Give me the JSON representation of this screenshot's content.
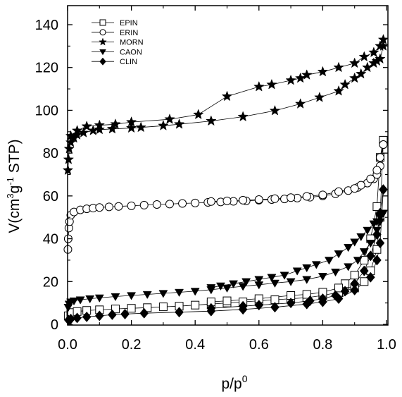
{
  "chart_data": {
    "type": "line",
    "title": "",
    "xlabel": "p/p0",
    "ylabel": "V(cm3g-1 STP)",
    "xlabel_main": "p/p",
    "xlabel_sup": "0",
    "ylabel_part1": "V(cm",
    "ylabel_sup1": "3",
    "ylabel_part2": "g",
    "ylabel_sup2": "-1",
    "ylabel_part3": " STP)",
    "xlim": [
      0.0,
      1.0
    ],
    "ylim": [
      0,
      150
    ],
    "x_ticks": [
      "0.0",
      "0.2",
      "0.4",
      "0.6",
      "0.8",
      "1.0"
    ],
    "y_ticks": [
      "0",
      "20",
      "40",
      "60",
      "80",
      "100",
      "120",
      "140"
    ],
    "grid": false,
    "legend_position": "top-left",
    "series": [
      {
        "name": "EPIN",
        "marker": "open-square",
        "color": "#000000",
        "adsorption": [
          [
            0.002,
            4
          ],
          [
            0.01,
            5.5
          ],
          [
            0.03,
            6
          ],
          [
            0.06,
            6.5
          ],
          [
            0.1,
            6.8
          ],
          [
            0.15,
            7.2
          ],
          [
            0.2,
            7.5
          ],
          [
            0.25,
            7.8
          ],
          [
            0.3,
            8.2
          ],
          [
            0.35,
            8.5
          ],
          [
            0.4,
            9
          ],
          [
            0.45,
            9.5
          ],
          [
            0.5,
            10
          ],
          [
            0.55,
            10.5
          ],
          [
            0.6,
            11
          ],
          [
            0.65,
            11.5
          ],
          [
            0.7,
            12
          ],
          [
            0.75,
            12.5
          ],
          [
            0.8,
            13.5
          ],
          [
            0.85,
            15
          ],
          [
            0.9,
            17
          ],
          [
            0.93,
            20
          ],
          [
            0.95,
            25
          ],
          [
            0.97,
            35
          ],
          [
            0.98,
            50
          ],
          [
            0.99,
            86
          ]
        ],
        "desorption": [
          [
            0.99,
            86
          ],
          [
            0.98,
            78
          ],
          [
            0.97,
            55
          ],
          [
            0.95,
            40
          ],
          [
            0.93,
            30
          ],
          [
            0.9,
            23
          ],
          [
            0.87,
            19
          ],
          [
            0.85,
            17
          ],
          [
            0.8,
            15
          ],
          [
            0.75,
            14
          ],
          [
            0.7,
            13.5
          ],
          [
            0.6,
            12
          ],
          [
            0.5,
            11
          ],
          [
            0.45,
            10.5
          ]
        ]
      },
      {
        "name": "ERIN",
        "marker": "open-circle",
        "color": "#000000",
        "adsorption": [
          [
            0.001,
            35
          ],
          [
            0.002,
            40
          ],
          [
            0.004,
            45
          ],
          [
            0.006,
            48
          ],
          [
            0.01,
            51
          ],
          [
            0.02,
            52.5
          ],
          [
            0.04,
            53.5
          ],
          [
            0.06,
            54
          ],
          [
            0.08,
            54.3
          ],
          [
            0.1,
            54.6
          ],
          [
            0.13,
            54.9
          ],
          [
            0.16,
            55.1
          ],
          [
            0.2,
            55.4
          ],
          [
            0.24,
            55.7
          ],
          [
            0.28,
            56
          ],
          [
            0.32,
            56.2
          ],
          [
            0.36,
            56.5
          ],
          [
            0.4,
            56.7
          ],
          [
            0.44,
            57
          ],
          [
            0.48,
            57.2
          ],
          [
            0.52,
            57.5
          ],
          [
            0.56,
            57.7
          ],
          [
            0.6,
            58
          ],
          [
            0.64,
            58.3
          ],
          [
            0.68,
            58.6
          ],
          [
            0.72,
            59
          ],
          [
            0.76,
            59.4
          ],
          [
            0.8,
            60
          ],
          [
            0.84,
            61
          ],
          [
            0.88,
            62.5
          ],
          [
            0.91,
            64
          ],
          [
            0.94,
            66
          ],
          [
            0.96,
            68
          ],
          [
            0.97,
            70
          ],
          [
            0.98,
            74
          ],
          [
            0.99,
            84
          ]
        ],
        "desorption": [
          [
            0.99,
            84
          ],
          [
            0.98,
            78
          ],
          [
            0.97,
            72
          ],
          [
            0.95,
            68
          ],
          [
            0.92,
            65
          ],
          [
            0.9,
            63.5
          ],
          [
            0.85,
            62
          ],
          [
            0.8,
            60.5
          ],
          [
            0.75,
            59.8
          ],
          [
            0.7,
            59.2
          ],
          [
            0.65,
            58.7
          ],
          [
            0.6,
            58.3
          ],
          [
            0.55,
            58
          ],
          [
            0.5,
            57.7
          ],
          [
            0.45,
            57.4
          ]
        ]
      },
      {
        "name": "MORN",
        "marker": "star",
        "color": "#000000",
        "adsorption": [
          [
            0.001,
            72
          ],
          [
            0.003,
            77
          ],
          [
            0.005,
            82
          ],
          [
            0.01,
            85
          ],
          [
            0.02,
            87
          ],
          [
            0.03,
            88.5
          ],
          [
            0.05,
            89.5
          ],
          [
            0.08,
            90.5
          ],
          [
            0.1,
            91
          ],
          [
            0.14,
            91.3
          ],
          [
            0.2,
            91.7
          ],
          [
            0.23,
            92
          ],
          [
            0.3,
            92.8
          ],
          [
            0.35,
            93.5
          ],
          [
            0.45,
            95
          ],
          [
            0.55,
            97
          ],
          [
            0.65,
            99.8
          ],
          [
            0.73,
            103
          ],
          [
            0.79,
            106
          ],
          [
            0.85,
            109
          ],
          [
            0.87,
            112
          ],
          [
            0.9,
            115
          ],
          [
            0.92,
            117
          ],
          [
            0.94,
            120
          ],
          [
            0.96,
            122
          ],
          [
            0.97,
            123
          ],
          [
            0.98,
            124
          ],
          [
            0.99,
            130
          ]
        ],
        "desorption": [
          [
            0.99,
            133
          ],
          [
            0.98,
            130
          ],
          [
            0.96,
            127
          ],
          [
            0.93,
            125
          ],
          [
            0.9,
            122
          ],
          [
            0.85,
            120
          ],
          [
            0.8,
            118
          ],
          [
            0.75,
            116.5
          ],
          [
            0.73,
            115
          ],
          [
            0.7,
            114
          ],
          [
            0.64,
            112
          ],
          [
            0.6,
            111
          ],
          [
            0.5,
            106.5
          ],
          [
            0.41,
            98
          ],
          [
            0.32,
            95.8
          ],
          [
            0.2,
            94.5
          ],
          [
            0.15,
            93.5
          ],
          [
            0.1,
            93
          ],
          [
            0.06,
            92.5
          ],
          [
            0.03,
            90.5
          ],
          [
            0.01,
            88
          ]
        ]
      },
      {
        "name": "CAON",
        "marker": "filled-down-triangle",
        "color": "#000000",
        "adsorption": [
          [
            0.002,
            8
          ],
          [
            0.005,
            9.5
          ],
          [
            0.01,
            10.5
          ],
          [
            0.02,
            11
          ],
          [
            0.04,
            11.5
          ],
          [
            0.07,
            12
          ],
          [
            0.1,
            12.4
          ],
          [
            0.15,
            13
          ],
          [
            0.2,
            13.5
          ],
          [
            0.25,
            14
          ],
          [
            0.3,
            14.5
          ],
          [
            0.35,
            15
          ],
          [
            0.4,
            15.5
          ],
          [
            0.45,
            16.2
          ],
          [
            0.5,
            17
          ],
          [
            0.55,
            17.8
          ],
          [
            0.6,
            18.5
          ],
          [
            0.65,
            19.3
          ],
          [
            0.7,
            20
          ],
          [
            0.75,
            21
          ],
          [
            0.8,
            22.5
          ],
          [
            0.84,
            24.5
          ],
          [
            0.88,
            27
          ],
          [
            0.91,
            30
          ],
          [
            0.93,
            34
          ],
          [
            0.95,
            38
          ],
          [
            0.97,
            44
          ],
          [
            0.98,
            48
          ],
          [
            0.99,
            52
          ]
        ],
        "desorption": [
          [
            0.99,
            52
          ],
          [
            0.98,
            50
          ],
          [
            0.97,
            48
          ],
          [
            0.96,
            47
          ],
          [
            0.94,
            44
          ],
          [
            0.92,
            41
          ],
          [
            0.9,
            38.5
          ],
          [
            0.88,
            36
          ],
          [
            0.85,
            33
          ],
          [
            0.82,
            30
          ],
          [
            0.78,
            28
          ],
          [
            0.75,
            26.5
          ],
          [
            0.72,
            25
          ],
          [
            0.68,
            23
          ],
          [
            0.64,
            22
          ],
          [
            0.6,
            21
          ],
          [
            0.56,
            20
          ],
          [
            0.52,
            19
          ],
          [
            0.48,
            18
          ],
          [
            0.45,
            17.2
          ]
        ]
      },
      {
        "name": "CLIN",
        "marker": "filled-diamond",
        "color": "#000000",
        "adsorption": [
          [
            0.003,
            2
          ],
          [
            0.01,
            2.5
          ],
          [
            0.03,
            3
          ],
          [
            0.06,
            3.5
          ],
          [
            0.1,
            4
          ],
          [
            0.14,
            4.5
          ],
          [
            0.18,
            4.8
          ],
          [
            0.24,
            5.2
          ],
          [
            0.35,
            5.7
          ],
          [
            0.45,
            6.2
          ],
          [
            0.55,
            7
          ],
          [
            0.65,
            8
          ],
          [
            0.75,
            9.5
          ],
          [
            0.8,
            10.5
          ],
          [
            0.85,
            12
          ],
          [
            0.9,
            16
          ],
          [
            0.95,
            22
          ],
          [
            0.97,
            30
          ],
          [
            0.98,
            38
          ],
          [
            0.99,
            63
          ]
        ],
        "desorption": [
          [
            0.99,
            63
          ],
          [
            0.98,
            52
          ],
          [
            0.97,
            42
          ],
          [
            0.95,
            32
          ],
          [
            0.93,
            25
          ],
          [
            0.9,
            19
          ],
          [
            0.87,
            15.5
          ],
          [
            0.84,
            13.5
          ],
          [
            0.8,
            12
          ],
          [
            0.76,
            11
          ],
          [
            0.7,
            10
          ],
          [
            0.6,
            9
          ],
          [
            0.55,
            8.5
          ],
          [
            0.45,
            7.5
          ]
        ]
      }
    ]
  }
}
